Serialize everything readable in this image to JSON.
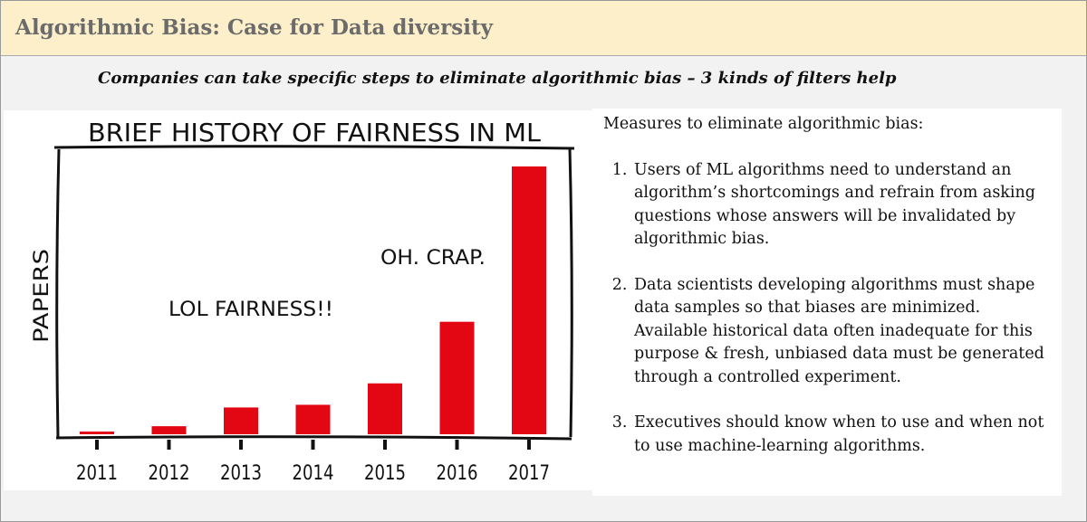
{
  "header": {
    "title": "Algorithmic Bias: Case for Data diversity"
  },
  "subtitle": "Companies can take specific steps to eliminate algorithmic bias – 3 kinds of filters help",
  "measures": {
    "heading": "Measures to eliminate algorithmic bias:",
    "items": [
      "Users of ML algorithms need to understand an algorithm’s shortcomings and refrain from asking questions whose answers will be invalidated by algorithmic bias.",
      "Data scientists developing algorithms must shape data samples so that biases are minimized. Available historical data often inadequate for this purpose & fresh, unbiased data must be generated through a controlled experiment.",
      "Executives should know when to use and when not to use machine-learning algorithms."
    ]
  },
  "chart_data": {
    "type": "bar",
    "title": "BRIEF HISTORY OF FAIRNESS IN ML",
    "ylabel": "PAPERS",
    "xlabel": "",
    "categories": [
      "2011",
      "2012",
      "2013",
      "2014",
      "2015",
      "2016",
      "2017"
    ],
    "values": [
      1,
      3,
      10,
      11,
      19,
      42,
      100
    ],
    "ylim": [
      0,
      100
    ],
    "annotations": [
      "LOL FAIRNESS!!",
      "OH. CRAP."
    ],
    "bar_color": "#e30613",
    "grid": false
  }
}
